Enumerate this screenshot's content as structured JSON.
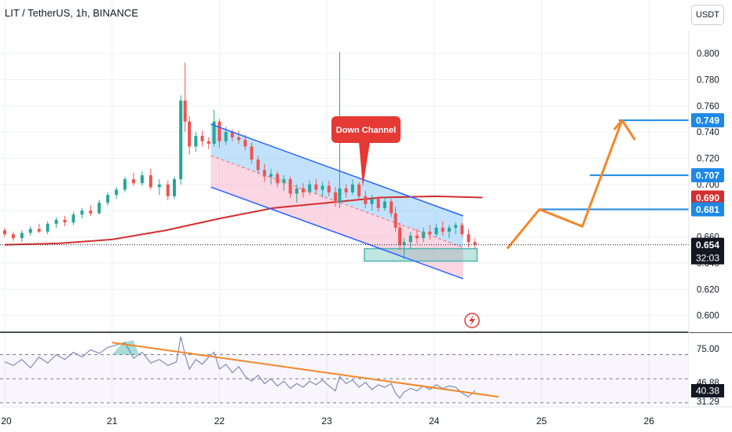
{
  "header": {
    "title": "LIT / TetherUS, 1h, BINANCE",
    "currency_button": "USDT"
  },
  "colors": {
    "bull": "#26a69a",
    "bear": "#ef5350",
    "ma": "#d32f2f",
    "channel_line": "#2962ff",
    "channel_fill_upper": "#90caf9",
    "channel_fill_lower": "#f8bbd0",
    "support_box": "#4db6ac",
    "projection": "#f4862a",
    "target_line": "#1e88e5",
    "rsi_line": "#7e8cb4",
    "rsi_trend": "#f4862a"
  },
  "annotation": {
    "channel_label": "Down Channel"
  },
  "chart_data": [
    {
      "type": "candlestick",
      "panel": "price",
      "symbol": "LIT / TetherUS",
      "interval": "1h",
      "exchange": "BINANCE",
      "x_axis": {
        "ticks": [
          "20",
          "21",
          "22",
          "23",
          "24",
          "25",
          "26"
        ],
        "unit": "day"
      },
      "y_axis": {
        "ticks": [
          "0.600",
          "0.620",
          "0.640",
          "0.660",
          "0.680",
          "0.700",
          "0.720",
          "0.740",
          "0.760",
          "0.780",
          "0.800"
        ],
        "range": [
          0.592,
          0.818
        ]
      },
      "price_labels": [
        {
          "value": "0.749",
          "color": "#1e88e5"
        },
        {
          "value": "0.707",
          "color": "#1e88e5"
        },
        {
          "value": "0.690",
          "color": "#d32f2f"
        },
        {
          "value": "0.681",
          "color": "#1e88e5"
        },
        {
          "value": "0.654",
          "color": "#131722"
        }
      ],
      "countdown": "32:03",
      "current_price": 0.654,
      "target_levels": [
        0.681,
        0.707,
        0.749
      ],
      "moving_average": {
        "t": [
          20.0,
          20.5,
          21.0,
          21.5,
          22.0,
          22.5,
          23.0,
          23.5,
          24.0,
          24.45
        ],
        "v": [
          0.654,
          0.655,
          0.658,
          0.665,
          0.674,
          0.682,
          0.686,
          0.69,
          0.691,
          0.69
        ]
      },
      "channel": {
        "start_t": 21.92,
        "end_t": 24.27,
        "upper": [
          0.746,
          0.676
        ],
        "mid": [
          0.722,
          0.652
        ],
        "lower": [
          0.698,
          0.628
        ]
      },
      "support_zone": {
        "t": [
          23.35,
          24.4
        ],
        "v": [
          0.6415,
          0.651
        ]
      },
      "projection": {
        "t": [
          24.68,
          24.98,
          25.38,
          25.75,
          25.87
        ],
        "v": [
          0.651,
          0.681,
          0.668,
          0.749,
          0.734
        ]
      },
      "candle_series": [
        [
          20.0,
          0.665,
          0.667,
          0.66,
          0.662
        ],
        [
          20.08,
          0.662,
          0.664,
          0.657,
          0.659
        ],
        [
          20.16,
          0.659,
          0.665,
          0.656,
          0.663
        ],
        [
          20.24,
          0.663,
          0.668,
          0.661,
          0.666
        ],
        [
          20.32,
          0.666,
          0.67,
          0.663,
          0.664
        ],
        [
          20.4,
          0.664,
          0.672,
          0.662,
          0.67
        ],
        [
          20.48,
          0.67,
          0.675,
          0.667,
          0.673
        ],
        [
          20.56,
          0.673,
          0.676,
          0.668,
          0.671
        ],
        [
          20.64,
          0.671,
          0.679,
          0.669,
          0.677
        ],
        [
          20.72,
          0.677,
          0.682,
          0.674,
          0.68
        ],
        [
          20.8,
          0.68,
          0.684,
          0.676,
          0.678
        ],
        [
          20.88,
          0.678,
          0.688,
          0.677,
          0.686
        ],
        [
          20.96,
          0.686,
          0.694,
          0.684,
          0.692
        ],
        [
          21.04,
          0.692,
          0.698,
          0.689,
          0.696
        ],
        [
          21.12,
          0.696,
          0.706,
          0.694,
          0.704
        ],
        [
          21.2,
          0.704,
          0.709,
          0.699,
          0.701
        ],
        [
          21.28,
          0.701,
          0.71,
          0.699,
          0.707
        ],
        [
          21.36,
          0.707,
          0.712,
          0.696,
          0.698
        ],
        [
          21.44,
          0.698,
          0.704,
          0.692,
          0.7
        ],
        [
          21.52,
          0.7,
          0.703,
          0.688,
          0.691
        ],
        [
          21.58,
          0.691,
          0.706,
          0.689,
          0.704
        ],
        [
          21.64,
          0.704,
          0.768,
          0.7,
          0.764
        ],
        [
          21.68,
          0.764,
          0.793,
          0.74,
          0.748
        ],
        [
          21.72,
          0.748,
          0.752,
          0.723,
          0.729
        ],
        [
          21.78,
          0.729,
          0.74,
          0.725,
          0.737
        ],
        [
          21.84,
          0.737,
          0.741,
          0.729,
          0.733
        ],
        [
          21.9,
          0.733,
          0.736,
          0.727,
          0.731
        ],
        [
          21.95,
          0.731,
          0.757,
          0.729,
          0.748
        ],
        [
          22.0,
          0.748,
          0.75,
          0.728,
          0.733
        ],
        [
          22.06,
          0.733,
          0.744,
          0.73,
          0.74
        ],
        [
          22.12,
          0.74,
          0.742,
          0.733,
          0.736
        ],
        [
          22.18,
          0.736,
          0.741,
          0.731,
          0.734
        ],
        [
          22.24,
          0.734,
          0.738,
          0.726,
          0.729
        ],
        [
          22.3,
          0.729,
          0.732,
          0.716,
          0.719
        ],
        [
          22.36,
          0.719,
          0.722,
          0.708,
          0.711
        ],
        [
          22.42,
          0.711,
          0.716,
          0.702,
          0.706
        ],
        [
          22.48,
          0.706,
          0.712,
          0.7,
          0.708
        ],
        [
          22.54,
          0.708,
          0.71,
          0.698,
          0.701
        ],
        [
          22.6,
          0.701,
          0.707,
          0.695,
          0.704
        ],
        [
          22.66,
          0.704,
          0.706,
          0.69,
          0.693
        ],
        [
          22.72,
          0.693,
          0.7,
          0.686,
          0.697
        ],
        [
          22.78,
          0.697,
          0.701,
          0.69,
          0.694
        ],
        [
          22.84,
          0.694,
          0.703,
          0.692,
          0.7
        ],
        [
          22.9,
          0.7,
          0.704,
          0.693,
          0.696
        ],
        [
          22.96,
          0.696,
          0.702,
          0.69,
          0.699
        ],
        [
          23.02,
          0.699,
          0.703,
          0.691,
          0.694
        ],
        [
          23.08,
          0.694,
          0.698,
          0.683,
          0.686
        ],
        [
          23.12,
          0.686,
          0.801,
          0.682,
          0.697
        ],
        [
          23.18,
          0.697,
          0.7,
          0.69,
          0.694
        ],
        [
          23.24,
          0.694,
          0.704,
          0.692,
          0.7
        ],
        [
          23.3,
          0.7,
          0.702,
          0.688,
          0.691
        ],
        [
          23.36,
          0.691,
          0.695,
          0.682,
          0.685
        ],
        [
          23.42,
          0.685,
          0.692,
          0.68,
          0.689
        ],
        [
          23.48,
          0.689,
          0.691,
          0.679,
          0.682
        ],
        [
          23.54,
          0.682,
          0.69,
          0.68,
          0.687
        ],
        [
          23.6,
          0.687,
          0.689,
          0.675,
          0.678
        ],
        [
          23.64,
          0.678,
          0.683,
          0.664,
          0.667
        ],
        [
          23.68,
          0.667,
          0.671,
          0.65,
          0.654
        ],
        [
          23.72,
          0.654,
          0.659,
          0.643,
          0.656
        ],
        [
          23.78,
          0.656,
          0.664,
          0.651,
          0.661
        ],
        [
          23.84,
          0.661,
          0.666,
          0.655,
          0.659
        ],
        [
          23.9,
          0.659,
          0.667,
          0.656,
          0.664
        ],
        [
          23.96,
          0.664,
          0.669,
          0.658,
          0.662
        ],
        [
          24.02,
          0.662,
          0.67,
          0.66,
          0.667
        ],
        [
          24.08,
          0.667,
          0.672,
          0.661,
          0.664
        ],
        [
          24.14,
          0.664,
          0.669,
          0.659,
          0.667
        ],
        [
          24.2,
          0.667,
          0.671,
          0.662,
          0.669
        ],
        [
          24.26,
          0.669,
          0.671,
          0.66,
          0.662
        ],
        [
          24.32,
          0.662,
          0.666,
          0.652,
          0.656
        ],
        [
          24.38,
          0.656,
          0.659,
          0.651,
          0.654
        ]
      ]
    },
    {
      "type": "line",
      "panel": "RSI",
      "y_axis": {
        "ticks": [
          "75.00",
          "46.88",
          "31.29"
        ],
        "range": [
          28,
          84
        ]
      },
      "current_value": "40.38",
      "current_value_color": "#131722",
      "levels": [
        70,
        50,
        30
      ],
      "series": [
        {
          "t": [
            20.0,
            20.08,
            20.16,
            20.24,
            20.32,
            20.4,
            20.48,
            20.56,
            20.64,
            20.72,
            20.8,
            20.88,
            20.96,
            21.04,
            21.12,
            21.2,
            21.28,
            21.36,
            21.44,
            21.52,
            21.6,
            21.64,
            21.68,
            21.72,
            21.78,
            21.84,
            21.9,
            21.95,
            22.0,
            22.06,
            22.12,
            22.18,
            22.24,
            22.3,
            22.36,
            22.42,
            22.48,
            22.54,
            22.6,
            22.66,
            22.72,
            22.78,
            22.84,
            22.9,
            22.96,
            23.02,
            23.08,
            23.12,
            23.18,
            23.24,
            23.3,
            23.36,
            23.42,
            23.48,
            23.54,
            23.6,
            23.64,
            23.68,
            23.72,
            23.78,
            23.84,
            23.9,
            23.96,
            24.02,
            24.08,
            24.14,
            24.2,
            24.26,
            24.32,
            24.38
          ],
          "v": [
            64,
            61,
            66,
            59,
            68,
            63,
            70,
            66,
            72,
            68,
            74,
            71,
            76,
            78,
            80,
            67,
            72,
            63,
            66,
            61,
            64,
            85,
            70,
            58,
            66,
            62,
            68,
            72,
            58,
            62,
            55,
            60,
            52,
            48,
            53,
            46,
            50,
            44,
            48,
            42,
            46,
            43,
            48,
            45,
            49,
            44,
            40,
            52,
            46,
            49,
            43,
            47,
            41,
            45,
            43,
            46,
            38,
            34,
            39,
            42,
            40,
            44,
            41,
            45,
            42,
            44,
            43,
            38,
            35,
            40.38
          ]
        }
      ],
      "trendline": {
        "t": [
          21.0,
          24.6
        ],
        "v": [
          80,
          35
        ]
      }
    }
  ]
}
